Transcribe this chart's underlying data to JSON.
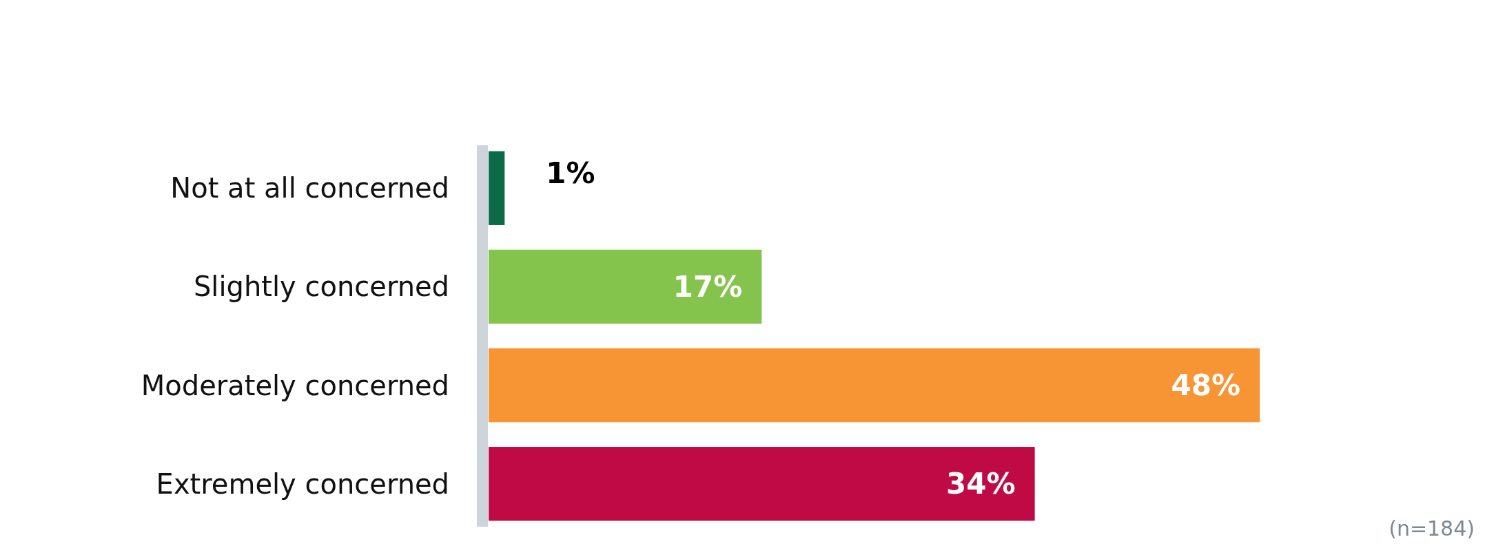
{
  "chart_data": {
    "type": "bar",
    "orientation": "horizontal",
    "categories": [
      "Not at all concerned",
      "Slightly concerned",
      "Moderately concerned",
      "Extremely concerned"
    ],
    "values": [
      1,
      17,
      48,
      34
    ],
    "colors": [
      "#0b6b48",
      "#84c44c",
      "#f79433",
      "#c00a46"
    ],
    "value_labels": [
      "1%",
      "17%",
      "48%",
      "34%"
    ],
    "annotations": [
      "(n=184)"
    ]
  }
}
